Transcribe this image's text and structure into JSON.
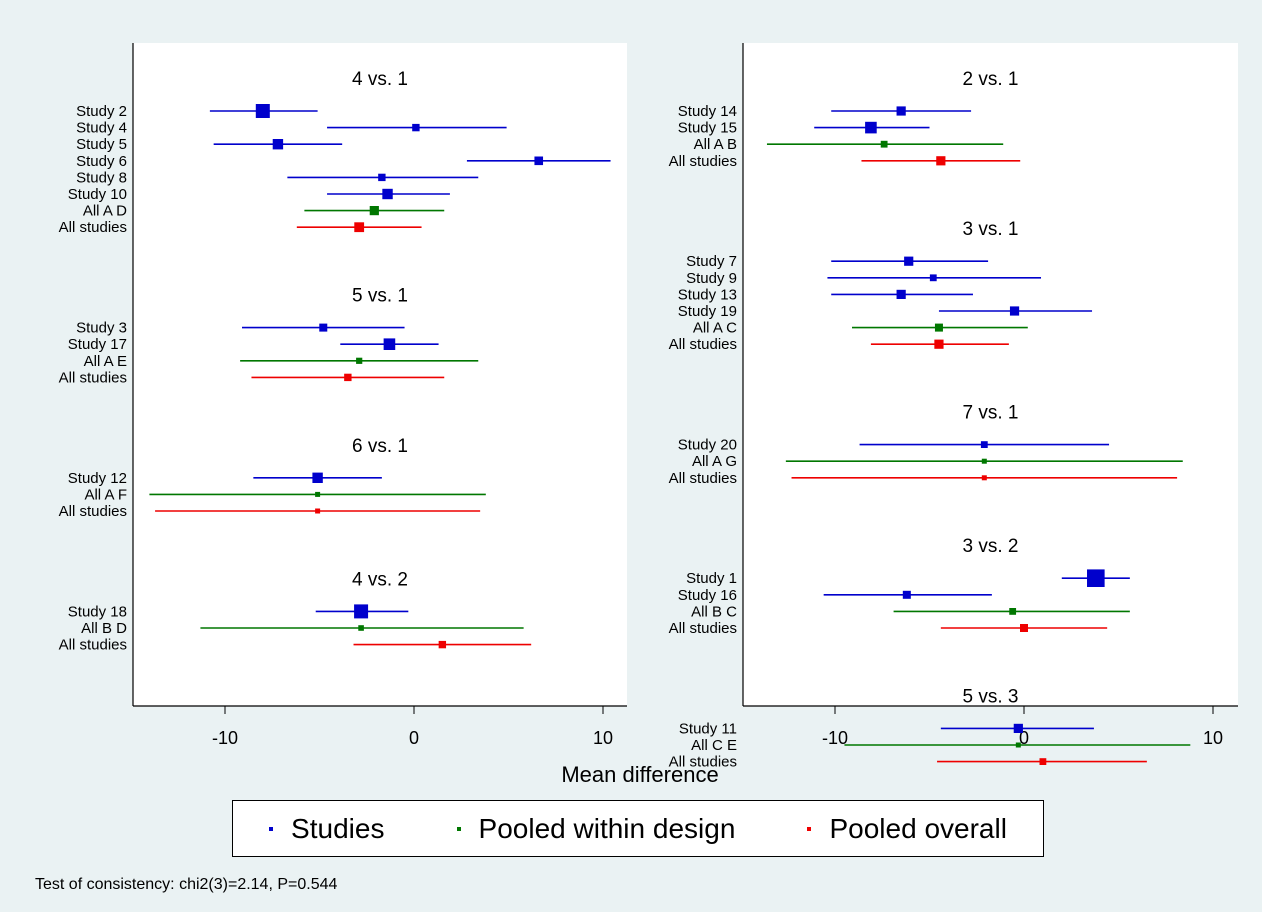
{
  "chart_data": {
    "type": "forest",
    "xlabel": "Mean difference",
    "xlim": [
      -15,
      12
    ],
    "xticks": [
      -10,
      0,
      10
    ],
    "series_colors": {
      "study": "#0000CC",
      "design": "#007700",
      "overall": "#EE0000"
    },
    "panels": [
      {
        "groups": [
          {
            "title": "4 vs. 1",
            "rows": [
              {
                "label": "Study 2",
                "kind": "study",
                "est": -8.0,
                "lo": -10.8,
                "hi": -5.1,
                "w": 2
              },
              {
                "label": "Study 4",
                "kind": "study",
                "est": 0.1,
                "lo": -4.6,
                "hi": 4.9,
                "w": 0.9
              },
              {
                "label": "Study 5",
                "kind": "study",
                "est": -7.2,
                "lo": -10.6,
                "hi": -3.8,
                "w": 1.4
              },
              {
                "label": "Study 6",
                "kind": "study",
                "est": 6.6,
                "lo": 2.8,
                "hi": 10.4,
                "w": 1.1
              },
              {
                "label": "Study 8",
                "kind": "study",
                "est": -1.7,
                "lo": -6.7,
                "hi": 3.4,
                "w": 0.9
              },
              {
                "label": "Study 10",
                "kind": "study",
                "est": -1.4,
                "lo": -4.6,
                "hi": 1.9,
                "w": 1.4
              },
              {
                "label": "All A D",
                "kind": "design",
                "est": -2.1,
                "lo": -5.8,
                "hi": 1.6,
                "w": 1.2
              },
              {
                "label": "All studies",
                "kind": "overall",
                "est": -2.9,
                "lo": -6.2,
                "hi": 0.4,
                "w": 1.3
              }
            ]
          },
          {
            "title": "5 vs. 1",
            "rows": [
              {
                "label": "Study 3",
                "kind": "study",
                "est": -4.8,
                "lo": -9.1,
                "hi": -0.5,
                "w": 1
              },
              {
                "label": "Study 17",
                "kind": "study",
                "est": -1.3,
                "lo": -3.9,
                "hi": 1.3,
                "w": 1.6
              },
              {
                "label": "All A E",
                "kind": "design",
                "est": -2.9,
                "lo": -9.2,
                "hi": 3.4,
                "w": 0.7
              },
              {
                "label": "All studies",
                "kind": "overall",
                "est": -3.5,
                "lo": -8.6,
                "hi": 1.6,
                "w": 0.9
              }
            ]
          },
          {
            "title": "6 vs. 1",
            "rows": [
              {
                "label": "Study 12",
                "kind": "study",
                "est": -5.1,
                "lo": -8.5,
                "hi": -1.7,
                "w": 1.4
              },
              {
                "label": "All A F",
                "kind": "design",
                "est": -5.1,
                "lo": -14.0,
                "hi": 3.8,
                "w": 0.5
              },
              {
                "label": "All studies",
                "kind": "overall",
                "est": -5.1,
                "lo": -13.7,
                "hi": 3.5,
                "w": 0.5
              }
            ]
          },
          {
            "title": "4 vs. 2",
            "rows": [
              {
                "label": "Study 18",
                "kind": "study",
                "est": -2.8,
                "lo": -5.2,
                "hi": -0.3,
                "w": 2
              },
              {
                "label": "All B D",
                "kind": "design",
                "est": -2.8,
                "lo": -11.3,
                "hi": 5.8,
                "w": 0.6
              },
              {
                "label": "All studies",
                "kind": "overall",
                "est": 1.5,
                "lo": -3.2,
                "hi": 6.2,
                "w": 0.9
              }
            ]
          }
        ]
      },
      {
        "groups": [
          {
            "title": "2 vs. 1",
            "rows": [
              {
                "label": "Study 14",
                "kind": "study",
                "est": -6.5,
                "lo": -10.2,
                "hi": -2.8,
                "w": 1.2
              },
              {
                "label": "Study 15",
                "kind": "study",
                "est": -8.1,
                "lo": -11.1,
                "hi": -5.0,
                "w": 1.6
              },
              {
                "label": "All A B",
                "kind": "design",
                "est": -7.4,
                "lo": -13.6,
                "hi": -1.1,
                "w": 0.8
              },
              {
                "label": "All studies",
                "kind": "overall",
                "est": -4.4,
                "lo": -8.6,
                "hi": -0.2,
                "w": 1.2
              }
            ]
          },
          {
            "title": "3 vs. 1",
            "rows": [
              {
                "label": "Study 7",
                "kind": "study",
                "est": -6.1,
                "lo": -10.2,
                "hi": -1.9,
                "w": 1.2
              },
              {
                "label": "Study 9",
                "kind": "study",
                "est": -4.8,
                "lo": -10.4,
                "hi": 0.9,
                "w": 0.8
              },
              {
                "label": "Study 13",
                "kind": "study",
                "est": -6.5,
                "lo": -10.2,
                "hi": -2.7,
                "w": 1.2
              },
              {
                "label": "Study 19",
                "kind": "study",
                "est": -0.5,
                "lo": -4.5,
                "hi": 3.6,
                "w": 1.2
              },
              {
                "label": "All A C",
                "kind": "design",
                "est": -4.5,
                "lo": -9.1,
                "hi": 0.2,
                "w": 1
              },
              {
                "label": "All studies",
                "kind": "overall",
                "est": -4.5,
                "lo": -8.1,
                "hi": -0.8,
                "w": 1.2
              }
            ]
          },
          {
            "title": "7 vs. 1",
            "rows": [
              {
                "label": "Study 20",
                "kind": "study",
                "est": -2.1,
                "lo": -8.7,
                "hi": 4.5,
                "w": 0.8
              },
              {
                "label": "All A G",
                "kind": "design",
                "est": -2.1,
                "lo": -12.6,
                "hi": 8.4,
                "w": 0.5
              },
              {
                "label": "All studies",
                "kind": "overall",
                "est": -2.1,
                "lo": -12.3,
                "hi": 8.1,
                "w": 0.5
              }
            ]
          },
          {
            "title": "3 vs. 2",
            "rows": [
              {
                "label": "Study 1",
                "kind": "study",
                "est": 3.8,
                "lo": 2.0,
                "hi": 5.6,
                "w": 2.6
              },
              {
                "label": "Study 16",
                "kind": "study",
                "est": -6.2,
                "lo": -10.6,
                "hi": -1.7,
                "w": 1
              },
              {
                "label": "All B C",
                "kind": "design",
                "est": -0.6,
                "lo": -6.9,
                "hi": 5.6,
                "w": 0.8
              },
              {
                "label": "All studies",
                "kind": "overall",
                "est": 0.0,
                "lo": -4.4,
                "hi": 4.4,
                "w": 1
              }
            ]
          },
          {
            "title": "5 vs. 3",
            "rows": [
              {
                "label": "Study 11",
                "kind": "study",
                "est": -0.3,
                "lo": -4.4,
                "hi": 3.7,
                "w": 1.2
              },
              {
                "label": "All C E",
                "kind": "design",
                "est": -0.3,
                "lo": -9.5,
                "hi": 8.8,
                "w": 0.5
              },
              {
                "label": "All studies",
                "kind": "overall",
                "est": 1.0,
                "lo": -4.6,
                "hi": 6.5,
                "w": 0.8
              }
            ]
          }
        ]
      }
    ]
  },
  "legend": {
    "items": [
      {
        "label": "Studies",
        "color": "#0000CC"
      },
      {
        "label": "Pooled within design",
        "color": "#007700"
      },
      {
        "label": "Pooled overall",
        "color": "#EE0000"
      }
    ]
  },
  "footnote": "Test of consistency: chi2(3)=2.14, P=0.544"
}
